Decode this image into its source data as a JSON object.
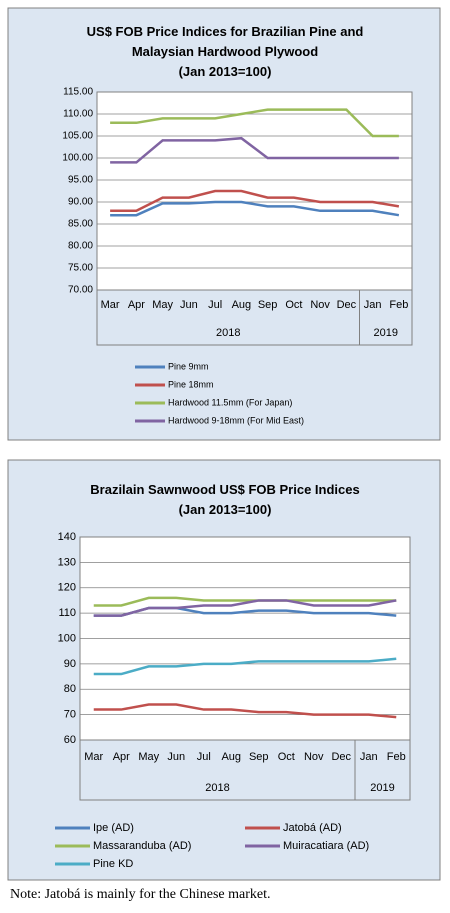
{
  "chart_data": [
    {
      "type": "line",
      "title": "US$ FOB Price Indices for Brazilian Pine and Malaysian Hardwood Plywood",
      "subtitle": "(Jan 2013=100)",
      "categories": [
        "Mar",
        "Apr",
        "May",
        "Jun",
        "Jul",
        "Aug",
        "Sep",
        "Oct",
        "Nov",
        "Dec",
        "Jan",
        "Feb"
      ],
      "x_groups": [
        {
          "label": "2018",
          "span": 10
        },
        {
          "label": "2019",
          "span": 2
        }
      ],
      "ylim": [
        70,
        115
      ],
      "yticks": [
        {
          "value": 70,
          "label": "70.00"
        },
        {
          "value": 75,
          "label": "75.00"
        },
        {
          "value": 80,
          "label": "80.00"
        },
        {
          "value": 85,
          "label": "85.00"
        },
        {
          "value": 90,
          "label": "90.00"
        },
        {
          "value": 95,
          "label": "95.00"
        },
        {
          "value": 100,
          "label": "100.00"
        },
        {
          "value": 105,
          "label": "105.00"
        },
        {
          "value": 110,
          "label": "110.00"
        },
        {
          "value": 115,
          "label": "115.00"
        }
      ],
      "grid": true,
      "series": [
        {
          "name": "Pine 9mm",
          "color": "#4f81bd",
          "values": [
            87,
            87,
            89.7,
            89.7,
            90,
            90,
            89,
            89,
            88,
            88,
            88,
            87
          ]
        },
        {
          "name": "Pine 18mm",
          "color": "#c0504d",
          "values": [
            88,
            88,
            91,
            91,
            92.5,
            92.5,
            91,
            91,
            90,
            90,
            90,
            89
          ]
        },
        {
          "name": "Hardwood 11.5mm (For Japan)",
          "color": "#9bbb59",
          "values": [
            108,
            108,
            109,
            109,
            109,
            110,
            111,
            111,
            111,
            111,
            105,
            105
          ]
        },
        {
          "name": "Hardwood 9-18mm (For Mid East)",
          "color": "#8064a2",
          "values": [
            99,
            99,
            104,
            104,
            104,
            104.5,
            100,
            100,
            100,
            100,
            100,
            100
          ]
        }
      ]
    },
    {
      "type": "line",
      "title": "Brazilain Sawnwood US$ FOB Price Indices",
      "subtitle": "(Jan 2013=100)",
      "categories": [
        "Mar",
        "Apr",
        "May",
        "Jun",
        "Jul",
        "Aug",
        "Sep",
        "Oct",
        "Nov",
        "Dec",
        "Jan",
        "Feb"
      ],
      "x_groups": [
        {
          "label": "2018",
          "span": 10
        },
        {
          "label": "2019",
          "span": 2
        }
      ],
      "ylim": [
        60,
        140
      ],
      "yticks": [
        60,
        70,
        80,
        90,
        100,
        110,
        120,
        130,
        140
      ],
      "grid": true,
      "series": [
        {
          "name": "Ipe (AD)",
          "color": "#4f81bd",
          "values": [
            109,
            109,
            112,
            112,
            110,
            110,
            111,
            111,
            110,
            110,
            110,
            109
          ]
        },
        {
          "name": "Jatobá (AD)",
          "color": "#c0504d",
          "values": [
            72,
            72,
            74,
            74,
            72,
            72,
            71,
            71,
            70,
            70,
            70,
            69
          ]
        },
        {
          "name": "Massaranduba (AD)",
          "color": "#9bbb59",
          "values": [
            113,
            113,
            116,
            116,
            115,
            115,
            115,
            115,
            115,
            115,
            115,
            115
          ]
        },
        {
          "name": "Muiracatiara (AD)",
          "color": "#8064a2",
          "values": [
            109,
            109,
            112,
            112,
            113,
            113,
            115,
            115,
            113,
            113,
            113,
            115
          ]
        },
        {
          "name": "Pine KD",
          "color": "#4bacc6",
          "values": [
            86,
            86,
            89,
            89,
            90,
            90,
            91,
            91,
            91,
            91,
            91,
            92
          ]
        }
      ]
    }
  ],
  "note": "Note: Jatobá is mainly for the Chinese market."
}
